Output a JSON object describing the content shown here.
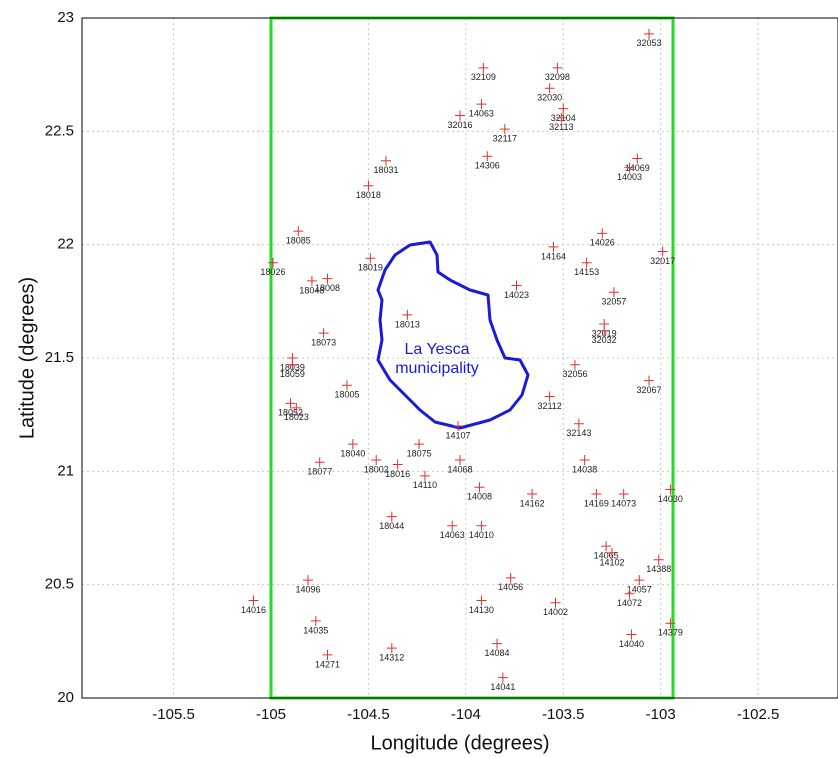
{
  "chart_data": {
    "type": "scatter",
    "xlabel": "Longitude (degrees)",
    "ylabel": "Latitude (degrees)",
    "annotations": [
      "La Yesca",
      "municipality"
    ],
    "xlim": [
      -105.97,
      -102.09
    ],
    "ylim": [
      20,
      23
    ],
    "xticks": [
      -105.5,
      -105,
      -104.5,
      -104,
      -103.5,
      -103,
      -102.5
    ],
    "yticks": [
      20,
      20.5,
      21,
      21.5,
      22,
      22.5,
      23
    ],
    "grid": true,
    "color": "#e23030",
    "x": [
      -103.06,
      -103.91,
      -103.53,
      -103.57,
      -103.92,
      -104.03,
      -103.5,
      -103.51,
      -103.8,
      -103.89,
      -103.12,
      -103.16,
      -104.41,
      -104.5,
      -104.86,
      -103.55,
      -103.3,
      -102.99,
      -104.99,
      -104.49,
      -104.79,
      -104.71,
      -103.38,
      -103.74,
      -103.24,
      -104.3,
      -103.29,
      -103.29,
      -104.73,
      -104.89,
      -104.89,
      -103.44,
      -103.06,
      -104.61,
      -104.9,
      -104.87,
      -103.57,
      -103.42,
      -104.04,
      -104.58,
      -104.24,
      -104.75,
      -104.46,
      -104.35,
      -104.03,
      -103.39,
      -104.21,
      -103.93,
      -103.66,
      -103.33,
      -103.19,
      -102.95,
      -104.38,
      -104.07,
      -103.92,
      -103.28,
      -103.25,
      -103.01,
      -103.77,
      -104.81,
      -103.11,
      -105.09,
      -103.92,
      -103.54,
      -103.16,
      -104.77,
      -102.95,
      -103.15,
      -103.84,
      -104.71,
      -104.38,
      -103.81
    ],
    "y": [
      22.93,
      22.78,
      22.78,
      22.69,
      22.62,
      22.57,
      22.6,
      22.56,
      22.51,
      22.39,
      22.38,
      22.34,
      22.37,
      22.26,
      22.06,
      21.99,
      22.05,
      21.97,
      21.92,
      21.94,
      21.84,
      21.85,
      21.92,
      21.82,
      21.79,
      21.69,
      21.65,
      21.62,
      21.61,
      21.5,
      21.47,
      21.47,
      21.4,
      21.38,
      21.3,
      21.28,
      21.33,
      21.21,
      21.2,
      21.12,
      21.12,
      21.04,
      21.05,
      21.03,
      21.05,
      21.05,
      20.98,
      20.93,
      20.9,
      20.9,
      20.9,
      20.92,
      20.8,
      20.76,
      20.76,
      20.67,
      20.64,
      20.61,
      20.53,
      20.52,
      20.52,
      20.43,
      20.43,
      20.42,
      20.46,
      20.34,
      20.33,
      20.28,
      20.24,
      20.19,
      20.22,
      20.09
    ],
    "point_labels": [
      "32053",
      "32109",
      "32098",
      "32030",
      "14063",
      "32016",
      "32104",
      "32113",
      "32117",
      "14306",
      "14069",
      "14003",
      "18031",
      "18018",
      "18085",
      "14164",
      "14026",
      "32017",
      "18026",
      "18019",
      "18048",
      "18008",
      "14153",
      "14023",
      "32057",
      "18013",
      "32019",
      "32032",
      "18073",
      "18039",
      "18059",
      "32056",
      "32067",
      "18005",
      "18052",
      "18023",
      "32112",
      "32143",
      "14107",
      "18040",
      "18075",
      "18077",
      "18002",
      "18016",
      "14068",
      "14038",
      "14110",
      "14008",
      "14162",
      "14169",
      "14073",
      "14030",
      "18044",
      "14063",
      "14010",
      "14065",
      "14102",
      "14388",
      "14056",
      "14096",
      "14057",
      "14016",
      "14130",
      "14002",
      "14072",
      "14035",
      "14379",
      "14040",
      "14084",
      "14271",
      "14312",
      "14041"
    ]
  }
}
